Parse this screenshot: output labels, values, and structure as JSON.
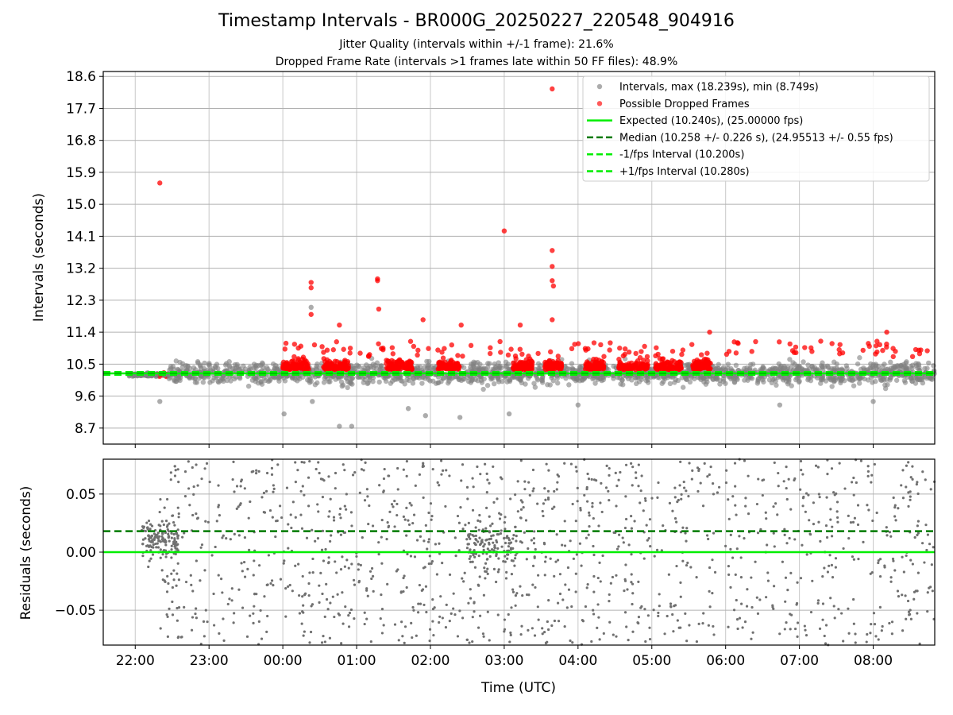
{
  "title": "Timestamp Intervals - BR000G_20250227_220548_904916",
  "subtitle_1": "Jitter Quality (intervals within +/-1 frame): 21.6%",
  "subtitle_2": "Dropped Frame Rate (intervals >1 frames late within 50 FF files): 48.9%",
  "colors": {
    "intervals": "#808080",
    "dropped": "#ff0000",
    "expected": "#00ee00",
    "median": "#007a00",
    "bounds": "#00ee00",
    "residuals": "#707070"
  },
  "chart_data": [
    {
      "type": "scatter",
      "xlabel": "",
      "ylabel": "Intervals (seconds)",
      "x_range": [
        "21:34",
        "08:50"
      ],
      "ylim": [
        8.249,
        18.739
      ],
      "yticks": [
        "8.7",
        "9.6",
        "10.5",
        "11.4",
        "12.3",
        "13.2",
        "14.1",
        "15.0",
        "15.9",
        "16.8",
        "17.7",
        "18.6"
      ],
      "grid": true,
      "legend_position": "top-right",
      "legend": [
        "Intervals, max (18.239s), min (8.749s)",
        "Possible Dropped Frames",
        "Expected (10.240s), (25.00000 fps)",
        "Median (10.258 +/- 0.226 s), (24.95513 +/- 0.55 fps)",
        "-1/fps Interval (10.200s)",
        "+1/fps Interval (10.280s)"
      ],
      "reference_lines": {
        "expected": 10.24,
        "median": 10.258,
        "minus_1_fps": 10.2,
        "plus_1_fps": 10.28
      },
      "dropped_frame_outliers": [
        {
          "time": "22:20",
          "interval": 15.6
        },
        {
          "time": "00:23",
          "interval": 12.8
        },
        {
          "time": "00:23",
          "interval": 12.65
        },
        {
          "time": "00:23",
          "interval": 11.9
        },
        {
          "time": "00:46",
          "interval": 11.6
        },
        {
          "time": "01:17",
          "interval": 12.9
        },
        {
          "time": "01:17",
          "interval": 12.85
        },
        {
          "time": "01:18",
          "interval": 12.05
        },
        {
          "time": "01:54",
          "interval": 11.75
        },
        {
          "time": "02:25",
          "interval": 11.6
        },
        {
          "time": "03:00",
          "interval": 14.25
        },
        {
          "time": "03:13",
          "interval": 11.6
        },
        {
          "time": "03:39",
          "interval": 18.25
        },
        {
          "time": "03:39",
          "interval": 13.7
        },
        {
          "time": "03:39",
          "interval": 13.25
        },
        {
          "time": "03:39",
          "interval": 12.85
        },
        {
          "time": "03:40",
          "interval": 12.7
        },
        {
          "time": "03:39",
          "interval": 11.75
        },
        {
          "time": "04:13",
          "interval": 11.1
        },
        {
          "time": "05:47",
          "interval": 11.4
        },
        {
          "time": "07:33",
          "interval": 11.05
        },
        {
          "time": "08:11",
          "interval": 11.4
        }
      ],
      "interval_outliers": [
        {
          "time": "22:20",
          "interval": 9.45
        },
        {
          "time": "00:01",
          "interval": 9.1
        },
        {
          "time": "00:24",
          "interval": 9.45
        },
        {
          "time": "00:46",
          "interval": 8.75
        },
        {
          "time": "00:56",
          "interval": 8.75
        },
        {
          "time": "01:42",
          "interval": 9.25
        },
        {
          "time": "01:56",
          "interval": 9.05
        },
        {
          "time": "02:24",
          "interval": 9.0
        },
        {
          "time": "03:04",
          "interval": 9.1
        },
        {
          "time": "04:00",
          "interval": 9.35
        },
        {
          "time": "06:44",
          "interval": 9.35
        },
        {
          "time": "08:00",
          "interval": 9.45
        },
        {
          "time": "00:23",
          "interval": 12.1
        }
      ]
    },
    {
      "type": "scatter",
      "xlabel": "Time (UTC)",
      "ylabel": "Residuals (seconds)",
      "x_range": [
        "21:34",
        "08:50"
      ],
      "ylim": [
        -0.08,
        0.08
      ],
      "yticks": [
        "−0.05",
        "0.00",
        "0.05"
      ],
      "xticks": [
        "22:00",
        "23:00",
        "00:00",
        "01:00",
        "02:00",
        "03:00",
        "04:00",
        "05:00",
        "06:00",
        "07:00",
        "08:00"
      ],
      "grid": true,
      "reference_lines": {
        "expected": 0.0,
        "median": 0.018
      }
    }
  ]
}
